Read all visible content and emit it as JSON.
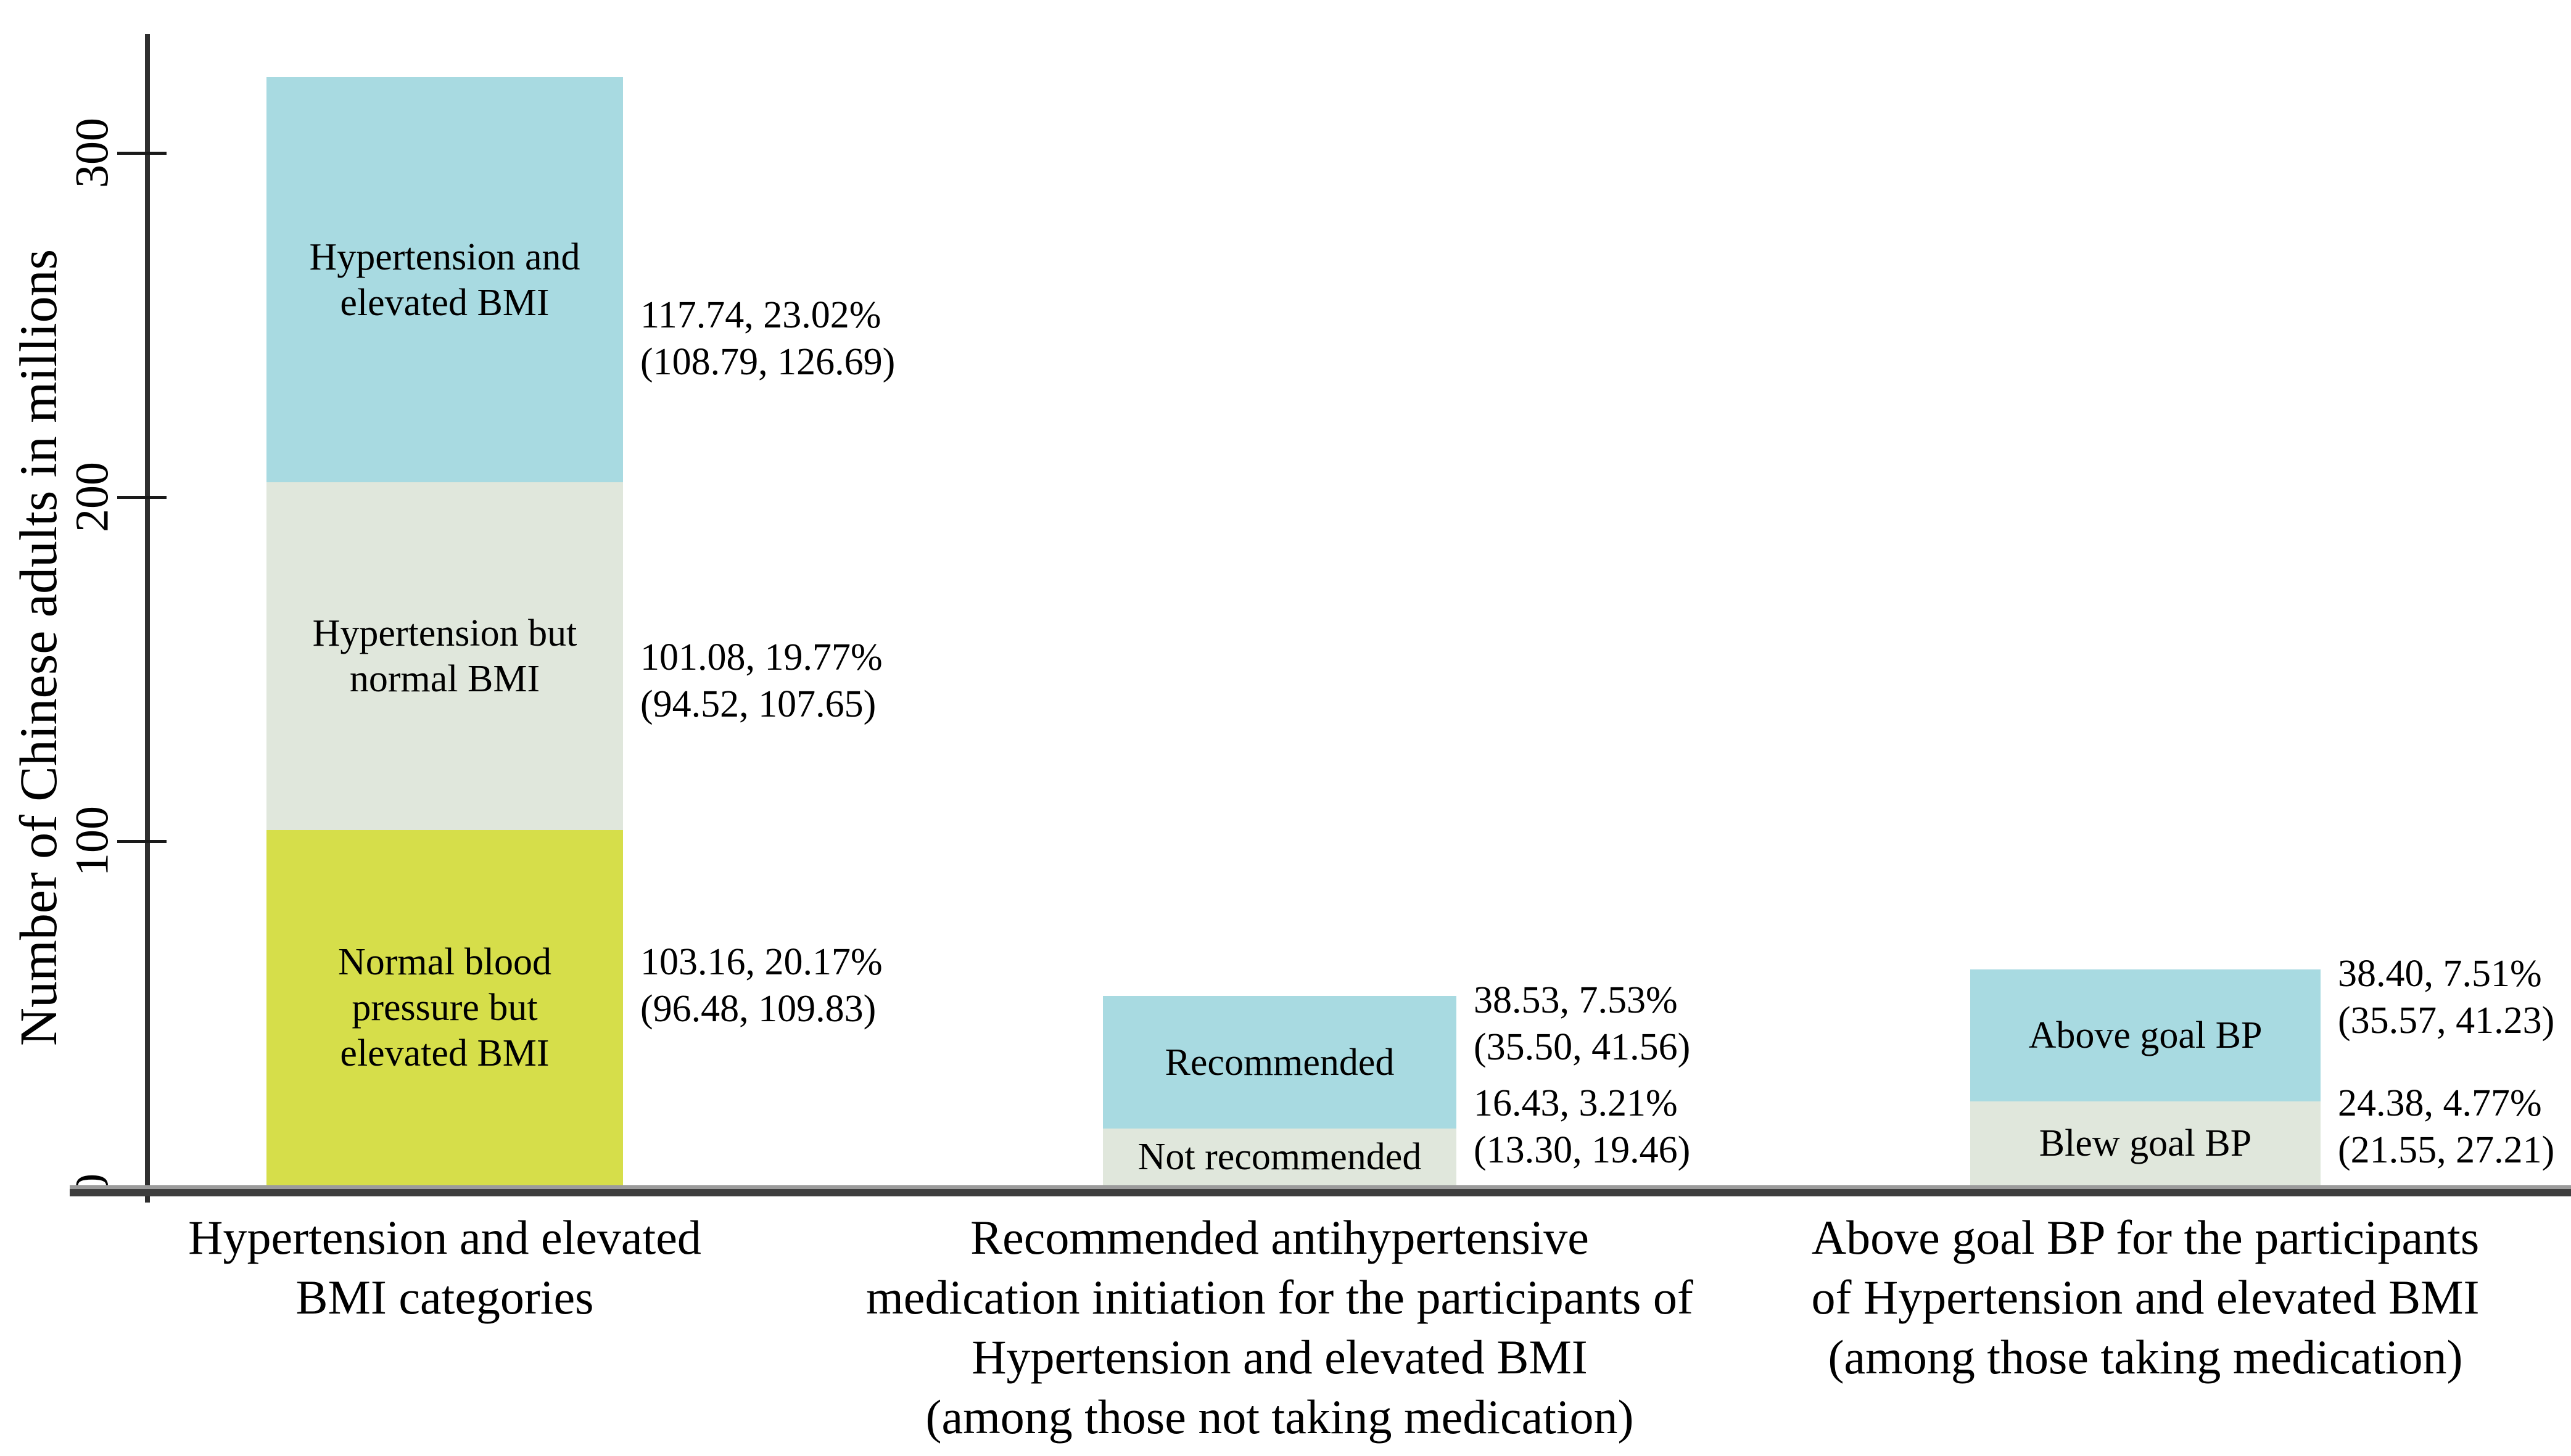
{
  "chart_data": {
    "type": "bar",
    "stacked": true,
    "title": "",
    "xlabel": "",
    "ylabel": "Number of Chinese adults in millions",
    "yticks": [
      0,
      100,
      200,
      300
    ],
    "ylim": [
      0,
      335
    ],
    "grid": false,
    "legend": "none (segments labeled inline)",
    "colors": {
      "cyan": "#a8dae1",
      "green_gray": "#e0e7dc",
      "yellow": "#d6de4a"
    },
    "bars": [
      {
        "category_lines": [
          "Hypertension and elevated",
          "BMI categories"
        ],
        "segments": [
          {
            "name": "Normal blood pressure but elevated BMI",
            "label_lines": [
              "Normal blood",
              "pressure but",
              "elevated BMI"
            ],
            "value": 103.16,
            "percent": "20.17%",
            "ci": "(96.48, 109.83)",
            "annotation_lines": [
              "103.16, 20.17%",
              "(96.48, 109.83)"
            ],
            "color": "yellow"
          },
          {
            "name": "Hypertension but normal BMI",
            "label_lines": [
              "Hypertension but",
              "normal BMI"
            ],
            "value": 101.08,
            "percent": "19.77%",
            "ci": "(94.52, 107.65)",
            "annotation_lines": [
              "101.08, 19.77%",
              "(94.52, 107.65)"
            ],
            "color": "green_gray"
          },
          {
            "name": "Hypertension and elevated BMI",
            "label_lines": [
              "Hypertension and",
              "elevated BMI"
            ],
            "value": 117.74,
            "percent": "23.02%",
            "ci": "(108.79, 126.69)",
            "annotation_lines": [
              "117.74, 23.02%",
              "(108.79, 126.69)"
            ],
            "color": "cyan"
          }
        ]
      },
      {
        "category_lines": [
          "Recommended antihypertensive",
          "medication initiation for the participants of",
          "Hypertension and elevated BMI",
          "(among those not taking medication)"
        ],
        "segments": [
          {
            "name": "Not recommended",
            "label_lines": [
              "Not recommended"
            ],
            "value": 16.43,
            "percent": "3.21%",
            "ci": "(13.30, 19.46)",
            "annotation_lines": [
              "16.43, 3.21%",
              "(13.30, 19.46)"
            ],
            "color": "green_gray"
          },
          {
            "name": "Recommended",
            "label_lines": [
              "Recommended"
            ],
            "value": 38.53,
            "percent": "7.53%",
            "ci": "(35.50, 41.56)",
            "annotation_lines": [
              "38.53, 7.53%",
              "(35.50, 41.56)"
            ],
            "color": "cyan"
          }
        ]
      },
      {
        "category_lines": [
          "Above goal BP for the participants",
          "of Hypertension and elevated BMI",
          "(among those taking medication)"
        ],
        "segments": [
          {
            "name": "Blew goal BP",
            "label_lines": [
              "Blew goal BP"
            ],
            "value": 24.38,
            "percent": "4.77%",
            "ci": "(21.55, 27.21)",
            "annotation_lines": [
              "24.38, 4.77%",
              "(21.55, 27.21)"
            ],
            "color": "green_gray"
          },
          {
            "name": "Above goal BP",
            "label_lines": [
              "Above goal BP"
            ],
            "value": 38.4,
            "percent": "7.51%",
            "ci": "(35.57, 41.23)",
            "annotation_lines": [
              "38.40, 7.51%",
              "(35.57, 41.23)"
            ],
            "color": "cyan"
          }
        ]
      }
    ]
  }
}
